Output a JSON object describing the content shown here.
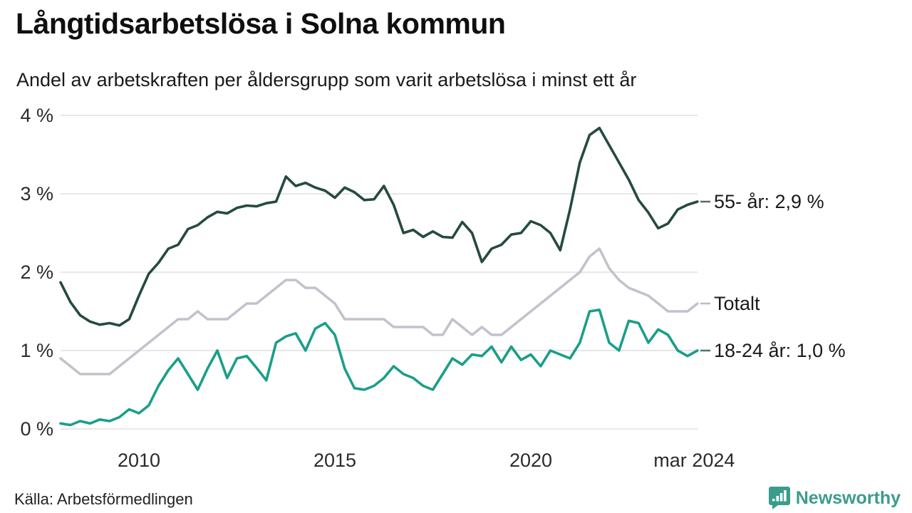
{
  "header": {
    "title": "Långtidsarbetslösa i Solna kommun",
    "subtitle": "Andel av arbetskraften per åldersgrupp som varit arbetslösa i minst ett år"
  },
  "footer": {
    "source": "Källa: Arbetsförmedlingen",
    "brand": "Newsworthy"
  },
  "colors": {
    "grid": "#e7e7e9",
    "axis_text": "#2b2b2b",
    "title_text": "#0f0f0f",
    "brand_teal": "#3b9c8d",
    "series_55": "#254a41",
    "series_total": "#c3c2cc",
    "series_1824": "#1b9e89"
  },
  "chart_data": {
    "type": "line",
    "title": "Långtidsarbetslösa i Solna kommun",
    "subtitle": "Andel av arbetskraften per åldersgrupp som varit arbetslösa i minst ett år",
    "xlabel": "",
    "ylabel": "",
    "unit": "%",
    "x_start": 2008.0,
    "x_step": 0.25,
    "x_end_label": "mar 2024",
    "ylim": [
      0,
      4
    ],
    "grid": true,
    "legend_position": "right-of-line-ends",
    "x_ticks": [
      {
        "year": 2010,
        "label": "2010"
      },
      {
        "year": 2015,
        "label": "2015"
      },
      {
        "year": 2020,
        "label": "2020"
      },
      {
        "year": 2024.17,
        "label": "mar 2024"
      }
    ],
    "y_ticks": [
      {
        "value": 4,
        "label": "4 %"
      },
      {
        "value": 3,
        "label": "3 %"
      },
      {
        "value": 2,
        "label": "2 %"
      },
      {
        "value": 1,
        "label": "1 %"
      },
      {
        "value": 0,
        "label": "0 %"
      }
    ],
    "series": [
      {
        "name": "Totalt",
        "end_label": "Totalt",
        "color": "#c3c2cc",
        "dash_color": "#bcbbc7",
        "last_value": 1.6,
        "values": [
          0.9,
          0.8,
          0.7,
          0.7,
          0.7,
          0.7,
          0.8,
          0.9,
          1.0,
          1.1,
          1.2,
          1.3,
          1.4,
          1.4,
          1.5,
          1.4,
          1.4,
          1.4,
          1.5,
          1.6,
          1.6,
          1.7,
          1.8,
          1.9,
          1.9,
          1.8,
          1.8,
          1.7,
          1.6,
          1.4,
          1.4,
          1.4,
          1.4,
          1.4,
          1.3,
          1.3,
          1.3,
          1.3,
          1.2,
          1.2,
          1.4,
          1.3,
          1.2,
          1.3,
          1.2,
          1.2,
          1.3,
          1.4,
          1.5,
          1.6,
          1.7,
          1.8,
          1.9,
          2.0,
          2.2,
          2.3,
          2.05,
          1.9,
          1.8,
          1.75,
          1.7,
          1.6,
          1.5,
          1.5,
          1.5,
          1.6
        ]
      },
      {
        "name": "18-24 år",
        "end_label": "18-24 år: 1,0 %",
        "color": "#1b9e89",
        "dash_color": "#47776c",
        "last_value": 1.0,
        "values": [
          0.07,
          0.05,
          0.1,
          0.07,
          0.12,
          0.1,
          0.15,
          0.25,
          0.2,
          0.3,
          0.55,
          0.75,
          0.9,
          0.7,
          0.5,
          0.77,
          1.0,
          0.65,
          0.9,
          0.93,
          0.78,
          0.62,
          1.1,
          1.18,
          1.22,
          1.0,
          1.28,
          1.35,
          1.2,
          0.77,
          0.52,
          0.5,
          0.55,
          0.65,
          0.8,
          0.7,
          0.65,
          0.55,
          0.5,
          0.7,
          0.9,
          0.82,
          0.95,
          0.93,
          1.05,
          0.85,
          1.05,
          0.88,
          0.95,
          0.8,
          1.0,
          0.95,
          0.9,
          1.1,
          1.5,
          1.52,
          1.1,
          1.0,
          1.38,
          1.35,
          1.1,
          1.27,
          1.2,
          1.0,
          0.93,
          1.0
        ]
      },
      {
        "name": "55- år",
        "end_label": "55- år: 2,9 %",
        "color": "#254a41",
        "dash_color": "#5d6a64",
        "last_value": 2.9,
        "values": [
          1.87,
          1.62,
          1.45,
          1.37,
          1.33,
          1.35,
          1.32,
          1.4,
          1.7,
          1.98,
          2.12,
          2.3,
          2.35,
          2.55,
          2.6,
          2.7,
          2.77,
          2.75,
          2.82,
          2.85,
          2.84,
          2.88,
          2.9,
          3.22,
          3.1,
          3.14,
          3.08,
          3.04,
          2.95,
          3.08,
          3.02,
          2.92,
          2.93,
          3.1,
          2.86,
          2.5,
          2.54,
          2.45,
          2.52,
          2.45,
          2.44,
          2.64,
          2.5,
          2.13,
          2.3,
          2.35,
          2.48,
          2.5,
          2.65,
          2.6,
          2.5,
          2.28,
          2.8,
          3.4,
          3.75,
          3.84,
          3.62,
          3.4,
          3.18,
          2.92,
          2.76,
          2.56,
          2.62,
          2.8,
          2.86,
          2.9
        ]
      }
    ]
  }
}
